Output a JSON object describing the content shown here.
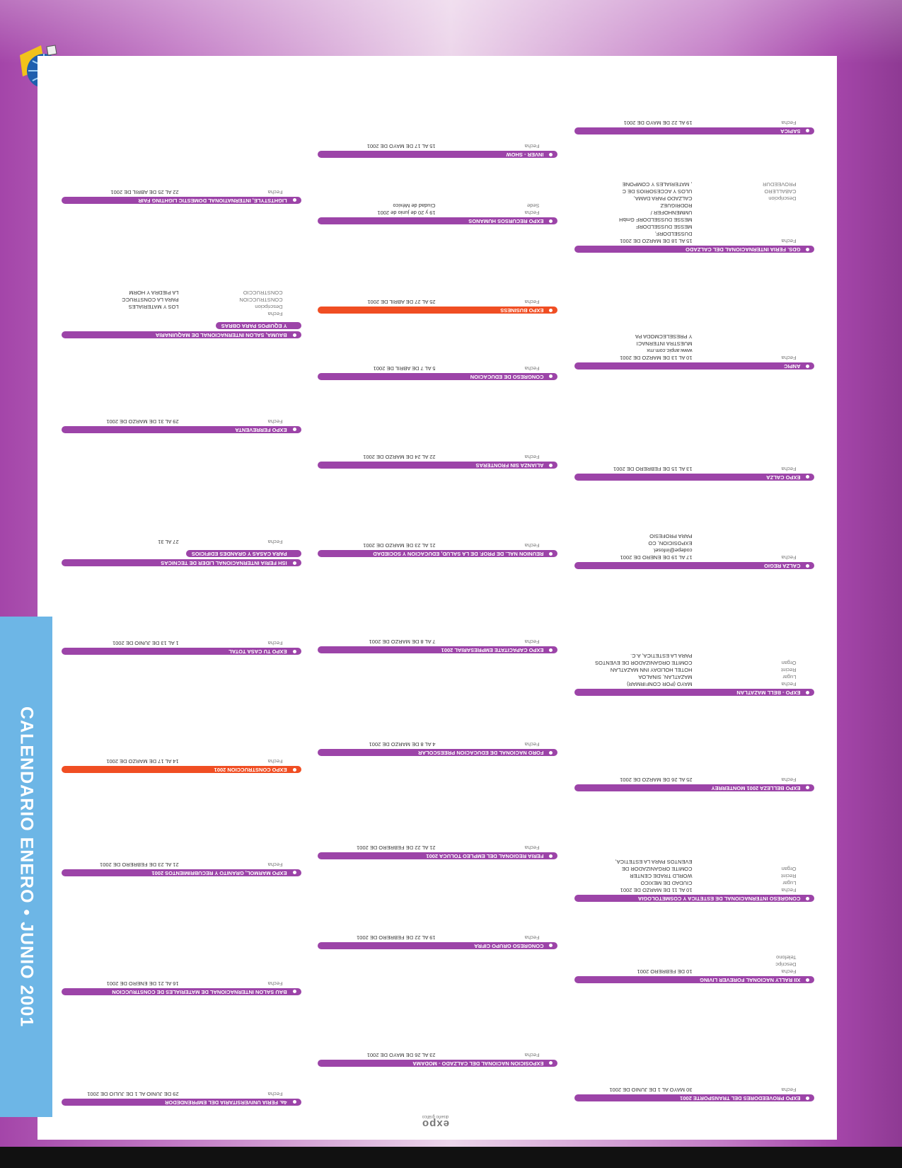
{
  "title": "CALENDARIO ENERO • JUNIO 2001",
  "logo": {
    "name": "expo",
    "tagline": "diseño gráfico"
  },
  "bar_color": "#9c44a8",
  "columns": [
    {
      "events": [
        {
          "name": [
            "SAPICA"
          ],
          "rows": [
            {
              "label": "Fecha",
              "value": "19 AL 22 DE MAYO DE 2001"
            }
          ]
        },
        {
          "name": [
            "GDS. FERIA INTERNACIONAL DEL CALZADO"
          ],
          "rows": [
            {
              "label": "Fecha",
              "value": "15 AL 18 DE MARZO DE 2001"
            },
            {
              "value": "DUSSELDORF,"
            },
            {
              "value": "MESSE DUSSELDORF"
            },
            {
              "value": "MESSE DUSSELDORF GmbH"
            },
            {
              "value": "UMMENHOFER /"
            },
            {
              "value": "RODRIGUEZ"
            },
            {
              "label": "Descripcion",
              "value": "CALZADO PARA DAMA,"
            },
            {
              "label": "CABALLERO",
              "value": "ULOS Y ACCESORIOS DE C"
            },
            {
              "label": "PROVEEDUR",
              "value": ", MATERIALES Y COMPONE"
            }
          ]
        },
        {
          "name": [
            "ANPIC"
          ],
          "rows": [
            {
              "label": "Fecha",
              "value": "10 AL 13 DE MARZO DE 2001"
            },
            {
              "value": "www.anpic.com.mx"
            },
            {
              "value": "MUESTRA INTERNACI"
            },
            {
              "value": "Y PRESELECMODA PA"
            }
          ]
        },
        {
          "name": [
            "EXPO CALZA"
          ],
          "rows": [
            {
              "label": "Fecha",
              "value": "13 AL 15 DE FEBRERO  DE 2001"
            }
          ]
        },
        {
          "name": [
            "CALZA REGIO"
          ],
          "rows": [
            {
              "label": "Fecha",
              "value": "17 AL 19 DE ENERO DE 2001"
            },
            {
              "value": "codepe@infosel."
            },
            {
              "value": "EXPOSICION, CO"
            },
            {
              "value": "PARA PROFESIO"
            }
          ]
        },
        {
          "name": [
            "EXPO - BELL MAZATLAN"
          ],
          "rows": [
            {
              "label": "Fecha",
              "value": "MAYO (POR CONFIRMAR)"
            },
            {
              "label": "Lugar",
              "value": "MAZATLAN, SINALOA"
            },
            {
              "label": "Recint",
              "value": "HOTEL HOLIDAY INN MAZATLAN"
            },
            {
              "label": "Organ",
              "value": "COMITE ORGANIZADOR DE EVENTOS"
            },
            {
              "value": "PARA LA ESTETICA, A.C."
            }
          ]
        },
        {
          "name": [
            "EXPO BELLEZA 2001 MONTERREY"
          ],
          "rows": [
            {
              "label": "Fecha",
              "value": "25 AL 26 DE MARZO DE 2001"
            }
          ]
        },
        {
          "name": [
            "CONGRESO INTERNACIONAL DE ESTETICA Y COSMETOLOGIA"
          ],
          "rows": [
            {
              "label": "Fecha",
              "value": "10 AL 11 DE MARZO DE 2001"
            },
            {
              "label": "Lugar",
              "value": "CIUDAD DE MEXICO"
            },
            {
              "label": "Recint",
              "value": "WORLD TRADE CENTER"
            },
            {
              "label": "Organ",
              "value": "COMITE ORGANIZADOR DE"
            },
            {
              "value": "EVENTOS PARA LA ESTETICA,"
            }
          ]
        },
        {
          "name": [
            "XII RALLY NACIONAL FOREVER LIVING"
          ],
          "rows": [
            {
              "label": "Fecha",
              "value": "10 DE FEBRERO 2001"
            },
            {
              "label": "Descripc"
            },
            {
              "label": "Telefono"
            }
          ]
        },
        {
          "name": [
            "EXPO PROVEEDORES DEL TRANSPORTE 2001"
          ],
          "rows": [
            {
              "label": "Fecha",
              "value": "30 MAYO AL 1 DE JUNIO DE 2001"
            }
          ]
        }
      ]
    },
    {
      "events": [
        {
          "name": [
            "INVER - SHOW"
          ],
          "rows": [
            {
              "label": "Fecha",
              "value": "15 AL 17 DE MAYO DE 2001"
            }
          ]
        },
        {
          "name": [
            "EXPO RECURSOS HUMANOS"
          ],
          "rows": [
            {
              "label": "Fecha",
              "value": "19 y 20 de junio de 2001"
            },
            {
              "label": "Sede",
              "value": "Ciudad de México"
            }
          ]
        },
        {
          "name": [
            "EXPO BUSINESS"
          ],
          "color": "#f04e23",
          "rows": [
            {
              "label": "Fecha",
              "value": "25 AL 27 DE ABRIL DE 2001"
            }
          ]
        },
        {
          "name": [
            "CONGRESO DE EDUCACION"
          ],
          "rows": [
            {
              "label": "Fecha",
              "value": "5 AL 7 DE ABRIL DE 2001"
            }
          ]
        },
        {
          "name": [
            "ALIANZA SIN FRONTERAS"
          ],
          "rows": [
            {
              "label": "Fecha",
              "value": "22 AL 24 DE MARZO DE 2001"
            }
          ]
        },
        {
          "name": [
            "REUNION NAL. DE PROF. DE LA SALUD, EDUCACION Y SOCIEDAD"
          ],
          "rows": [
            {
              "label": "Fecha",
              "value": "21 AL 23 DE MARZO DE 2001"
            }
          ]
        },
        {
          "name": [
            "EXPO CAPACITATE EMPRESARIAL 2001"
          ],
          "rows": [
            {
              "label": "Fecha",
              "value": "7 AL 8 DE MARZO DE 2001"
            }
          ]
        },
        {
          "name": [
            "FORO NACIONAL DE EDUCACION PREESCOLAR"
          ],
          "rows": [
            {
              "label": "Fecha",
              "value": "4 AL 8 DE MARZO DE 2001"
            }
          ]
        },
        {
          "name": [
            "FERIA REGIONAL DEL EMPLEO TOLUCA 2001"
          ],
          "rows": [
            {
              "label": "Fecha",
              "value": "21 AL 22 DE FEBRERO DE 2001"
            }
          ]
        },
        {
          "name": [
            "CONGRESO GRUPO CIFRA"
          ],
          "rows": [
            {
              "label": "Fecha",
              "value": "19 AL 22 DE FEBRERO DE 2001"
            }
          ]
        },
        {
          "name": [
            "EXPOSICION NACIONAL DEL CALZADO - MODAMA"
          ],
          "rows": [
            {
              "label": "Fecha",
              "value": "23 AL 26 DE MAYO DE 2001"
            }
          ]
        }
      ]
    },
    {
      "events": [
        {
          "name": [
            "LIGHTSTYLE, INTERNATIONAL DOMESTIC LIGHTING FAIR"
          ],
          "rows": [
            {
              "label": "Fecha",
              "value": "22 AL 25 DE ABRIL DE 2001"
            }
          ]
        },
        {
          "name": [
            "BAUMA, SALON INTERNACIONAL DE MAQUINARIA",
            "Y EQUIPOS PARA OBRAS"
          ],
          "rows": [
            {
              "label": "Fecha"
            },
            {
              "label": "Descripcion",
              "value": "LOS Y MATERIALES"
            },
            {
              "label": "CONSTRUCCION",
              "value": "PARA LA CONSTRUCC"
            },
            {
              "label": "CONSTRUCCIO",
              "value": "LA PIEDRA Y HORM"
            }
          ]
        },
        {
          "name": [
            "EXPO FERREVENTA"
          ],
          "rows": [
            {
              "label": "Fecha",
              "value": "29 AL 31 DE MARZO DE 2001"
            }
          ]
        },
        {
          "name": [
            "ISH FERIA INTERNACIONAL LIDER DE TECNICAS",
            "PARA CASAS Y GRANDES EDIFICIOS"
          ],
          "rows": [
            {
              "label": "Fecha",
              "value": "27 AL 31"
            }
          ]
        },
        {
          "name": [
            "EXPO TU CASA TOTAL"
          ],
          "rows": [
            {
              "label": "Fecha",
              "value": "1 AL 13 DE JUNIO DE 2001"
            }
          ]
        },
        {
          "name": [
            "EXPO CONSTRUCCION 2001"
          ],
          "color": "#f04e23",
          "rows": [
            {
              "label": "Fecha",
              "value": "14 AL 17 DE MARZO DE 2001"
            }
          ]
        },
        {
          "name": [
            "EXPO MARMOL, GRANITO Y RECUBRIMIENTOS 2001"
          ],
          "rows": [
            {
              "label": "Fecha",
              "value": "21 AL 23 DE FEBRERO DE 2001"
            }
          ]
        },
        {
          "name": [
            "BAU SALON INTERNACIONAL DE MATERIALES DE CONSTRUCCION"
          ],
          "rows": [
            {
              "label": "Fecha",
              "value": "16 AL 21 DE ENERO DE 2001"
            }
          ]
        },
        {
          "name": [
            "4a. FERIA UNIVERSITARIA DEL EMPRENDEDOR"
          ],
          "rows": [
            {
              "label": "Fecha",
              "value": "29 DE JUNIO AL 1 DE JULIO DE 2001"
            }
          ]
        }
      ]
    }
  ]
}
